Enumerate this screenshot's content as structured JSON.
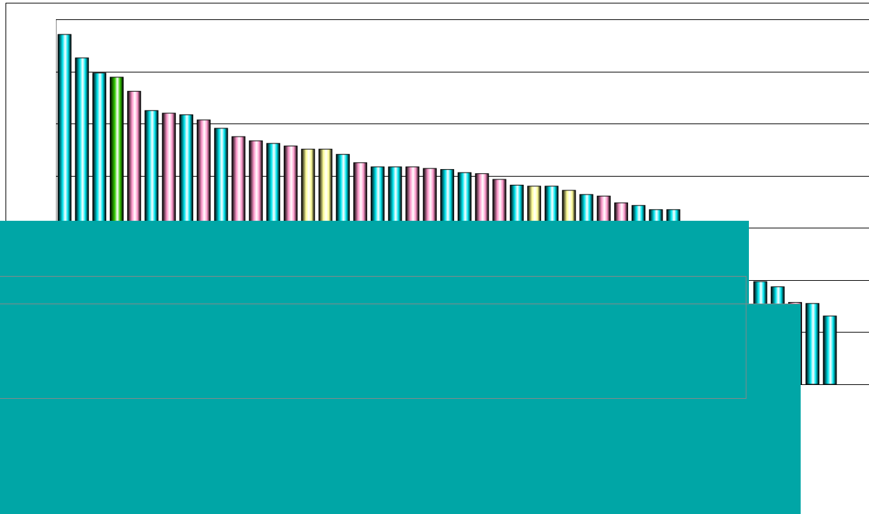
{
  "chart_data": {
    "type": "bar",
    "values": [
      6.71,
      6.26,
      5.97,
      5.89,
      5.62,
      5.25,
      5.2,
      5.17,
      5.07,
      4.91,
      4.75,
      4.67,
      4.62,
      4.57,
      4.51,
      4.51,
      4.41,
      4.25,
      4.17,
      4.17,
      4.17,
      4.14,
      4.12,
      4.06,
      4.04,
      3.93,
      3.82,
      3.8,
      3.8,
      3.72,
      3.64,
      3.61,
      3.48,
      3.43,
      3.35,
      3.35,
      null,
      null,
      null,
      null,
      1.97,
      1.87,
      1.57,
      1.55,
      1.31
    ],
    "colors": [
      "#00e5ee",
      "#00e5ee",
      "#00e5ee",
      "#33cc00",
      "#ff99cc",
      "#00e5ee",
      "#ff99cc",
      "#00e5ee",
      "#ff99cc",
      "#00e5ee",
      "#ff99cc",
      "#ff99cc",
      "#00e5ee",
      "#ff99cc",
      "#ffff99",
      "#ffff99",
      "#00e5ee",
      "#ff99cc",
      "#00e5ee",
      "#00e5ee",
      "#ff99cc",
      "#ff99cc",
      "#00e5ee",
      "#00e5ee",
      "#ff99cc",
      "#ff99cc",
      "#00e5ee",
      "#ffff99",
      "#00e5ee",
      "#ffff99",
      "#00e5ee",
      "#ff99cc",
      "#ff99cc",
      "#00e5ee",
      "#00e5ee",
      "#00e5ee",
      "#00e5ee",
      "#00e5ee",
      "#00e5ee",
      "#00e5ee",
      "#00e5ee",
      "#00e5ee",
      "#ff99cc",
      "#00e5ee",
      "#00e5ee"
    ],
    "ylim": [
      0,
      7
    ],
    "yticks": [
      0,
      1,
      2,
      3,
      4,
      5,
      6,
      7
    ],
    "grid": true
  }
}
